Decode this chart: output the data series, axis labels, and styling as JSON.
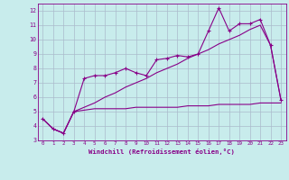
{
  "xlabel": "Windchill (Refroidissement éolien,°C)",
  "x_values": [
    0,
    1,
    2,
    3,
    4,
    5,
    6,
    7,
    8,
    9,
    10,
    11,
    12,
    13,
    14,
    15,
    16,
    17,
    18,
    19,
    20,
    21,
    22,
    23
  ],
  "line1": [
    4.5,
    3.8,
    3.5,
    5.0,
    7.3,
    7.5,
    7.5,
    7.7,
    8.0,
    7.7,
    7.5,
    8.6,
    8.7,
    8.9,
    8.8,
    9.0,
    10.6,
    12.2,
    10.6,
    11.1,
    11.1,
    11.4,
    9.6,
    5.8
  ],
  "line2": [
    4.5,
    3.8,
    3.5,
    5.0,
    5.1,
    5.2,
    5.2,
    5.2,
    5.2,
    5.3,
    5.3,
    5.3,
    5.3,
    5.3,
    5.4,
    5.4,
    5.4,
    5.5,
    5.5,
    5.5,
    5.5,
    5.6,
    5.6,
    5.6
  ],
  "line3": [
    4.5,
    3.8,
    3.5,
    5.0,
    5.3,
    5.6,
    6.0,
    6.3,
    6.7,
    7.0,
    7.3,
    7.7,
    8.0,
    8.3,
    8.7,
    9.0,
    9.3,
    9.7,
    10.0,
    10.3,
    10.7,
    11.0,
    9.6,
    5.8
  ],
  "line_color": "#880088",
  "bg_color": "#c8ecec",
  "grid_color": "#aabbcc",
  "ylim": [
    3,
    12.5
  ],
  "xlim": [
    -0.5,
    23.5
  ],
  "yticks": [
    3,
    4,
    5,
    6,
    7,
    8,
    9,
    10,
    11,
    12
  ],
  "xticks": [
    0,
    1,
    2,
    3,
    4,
    5,
    6,
    7,
    8,
    9,
    10,
    11,
    12,
    13,
    14,
    15,
    16,
    17,
    18,
    19,
    20,
    21,
    22,
    23
  ]
}
